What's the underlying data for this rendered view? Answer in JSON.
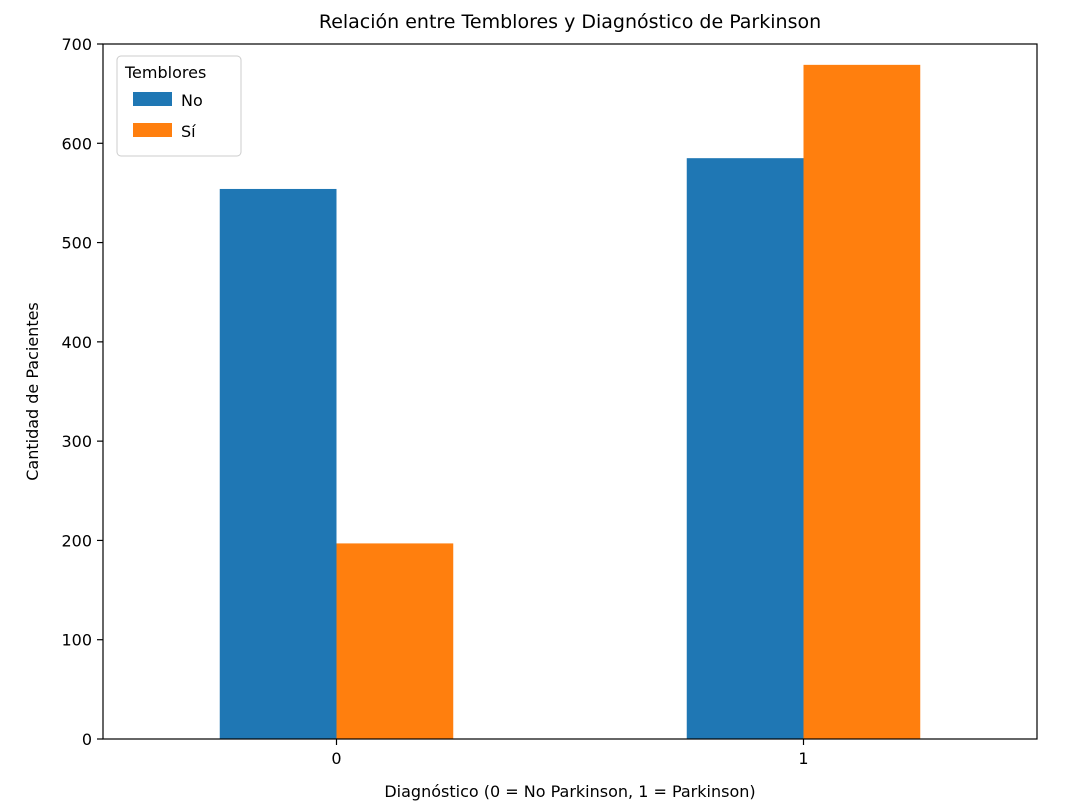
{
  "chart_data": {
    "type": "bar",
    "title": "Relación entre Temblores y Diagnóstico de Parkinson",
    "xlabel": "Diagnóstico (0 = No Parkinson, 1 = Parkinson)",
    "ylabel": "Cantidad de Pacientes",
    "categories": [
      "0",
      "1"
    ],
    "series": [
      {
        "name": "No",
        "color": "#1f77b4",
        "values": [
          554,
          585
        ]
      },
      {
        "name": "Sí",
        "color": "#ff7f0e",
        "values": [
          197,
          679
        ]
      }
    ],
    "ylim": [
      0,
      700
    ],
    "yticks": [
      0,
      100,
      200,
      300,
      400,
      500,
      600,
      700
    ],
    "grid": false,
    "legend": {
      "title": "Temblores",
      "placement": "top-left"
    }
  }
}
